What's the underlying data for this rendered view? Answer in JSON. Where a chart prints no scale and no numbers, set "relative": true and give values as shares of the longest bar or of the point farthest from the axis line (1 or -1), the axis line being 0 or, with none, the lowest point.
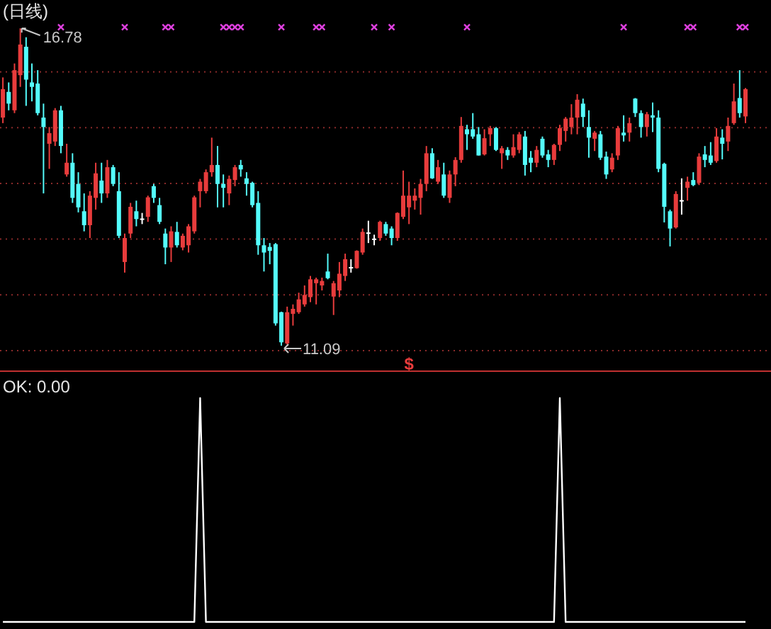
{
  "chart_data": [
    {
      "type": "candlestick",
      "title": "(日线)",
      "categories": [
        null,
        null,
        null,
        null,
        null,
        null,
        null,
        null,
        null,
        null,
        null,
        null,
        null,
        null,
        null,
        null,
        null,
        null,
        null,
        null,
        null,
        null,
        null,
        null,
        null,
        null,
        null,
        null,
        null,
        null,
        null,
        null,
        null,
        null,
        null,
        null,
        null,
        null,
        null,
        null,
        null,
        null,
        null,
        null,
        null,
        null,
        null,
        null,
        null,
        null,
        null,
        null,
        null,
        null,
        null,
        null,
        null,
        null,
        null,
        null,
        null,
        null,
        null,
        null,
        null,
        null,
        null,
        null,
        null,
        null,
        null,
        null,
        null,
        null,
        null,
        null,
        null,
        null,
        null,
        null,
        null,
        null,
        null,
        null,
        null,
        null,
        null,
        null,
        null,
        null,
        null,
        null,
        null,
        null,
        null,
        null,
        null,
        null,
        null,
        null,
        null,
        null,
        null,
        null,
        null,
        null,
        null,
        null,
        null,
        null,
        null,
        null,
        null,
        null,
        null,
        null,
        null,
        null,
        null,
        null,
        null,
        null,
        null,
        null,
        null,
        null,
        null,
        null,
        null
      ],
      "ohlc": [
        [
          15.18,
          15.9,
          15.08,
          15.69
        ],
        [
          15.64,
          15.81,
          15.31,
          15.43
        ],
        [
          15.31,
          16.15,
          15.26,
          16.03
        ],
        [
          15.94,
          16.78,
          15.73,
          16.49
        ],
        [
          16.45,
          16.62,
          15.39,
          15.86
        ],
        [
          15.81,
          16.15,
          15.47,
          15.73
        ],
        [
          15.79,
          16.03,
          15.22,
          15.26
        ],
        [
          15.18,
          15.43,
          13.82,
          15.01
        ],
        [
          14.71,
          15.01,
          14.26,
          14.9
        ],
        [
          14.75,
          15.35,
          14.67,
          15.31
        ],
        [
          15.31,
          15.39,
          14.54,
          14.67
        ],
        [
          14.16,
          14.71,
          14.12,
          14.37
        ],
        [
          14.37,
          14.54,
          13.65,
          13.74
        ],
        [
          13.99,
          14.2,
          13.48,
          13.57
        ],
        [
          13.5,
          13.82,
          13.14,
          13.25
        ],
        [
          13.25,
          13.86,
          13.02,
          13.78
        ],
        [
          13.74,
          14.37,
          13.53,
          14.18
        ],
        [
          14.05,
          14.37,
          13.65,
          13.82
        ],
        [
          13.82,
          14.42,
          13.74,
          14.29
        ],
        [
          14.29,
          14.33,
          13.95,
          13.99
        ],
        [
          13.86,
          14.2,
          13.02,
          13.06
        ],
        [
          12.59,
          13.1,
          12.4,
          13.02
        ],
        [
          13.1,
          13.65,
          13.02,
          13.58
        ],
        [
          13.5,
          13.69,
          13.23,
          13.36
        ],
        [
          13.37,
          13.47,
          13.27,
          13.37
        ],
        [
          13.4,
          13.78,
          13.31,
          13.75
        ],
        [
          13.95,
          13.99,
          13.65,
          13.74
        ],
        [
          13.61,
          13.74,
          13.27,
          13.31
        ],
        [
          13.1,
          13.19,
          12.55,
          12.85
        ],
        [
          12.85,
          13.23,
          12.59,
          13.14
        ],
        [
          13.13,
          13.31,
          12.85,
          12.89
        ],
        [
          12.85,
          13.1,
          12.8,
          13.06
        ],
        [
          12.89,
          13.27,
          12.76,
          13.23
        ],
        [
          13.14,
          13.78,
          13.1,
          13.75
        ],
        [
          13.86,
          14.08,
          13.57,
          14.03
        ],
        [
          13.86,
          14.25,
          13.82,
          14.2
        ],
        [
          14.2,
          14.82,
          14.12,
          14.33
        ],
        [
          14.33,
          14.67,
          13.57,
          13.99
        ],
        [
          13.99,
          14.16,
          13.57,
          13.92
        ],
        [
          13.82,
          14.14,
          13.61,
          14.08
        ],
        [
          14.06,
          14.33,
          13.95,
          14.29
        ],
        [
          14.33,
          14.42,
          14.12,
          14.25
        ],
        [
          14.09,
          14.2,
          13.78,
          13.99
        ],
        [
          14.01,
          14.03,
          13.57,
          13.61
        ],
        [
          13.65,
          13.86,
          12.72,
          12.89
        ],
        [
          12.89,
          13.02,
          12.42,
          12.76
        ],
        [
          12.86,
          12.93,
          12.55,
          12.79
        ],
        [
          12.91,
          12.93,
          11.45,
          11.49
        ],
        [
          11.69,
          11.7,
          11.09,
          11.15
        ],
        [
          11.13,
          11.79,
          11.11,
          11.69
        ],
        [
          11.66,
          11.83,
          11.45,
          11.75
        ],
        [
          11.69,
          12.04,
          11.66,
          11.92
        ],
        [
          11.83,
          12.17,
          11.79,
          12.0
        ],
        [
          11.96,
          12.34,
          11.87,
          12.28
        ],
        [
          12.21,
          12.31,
          11.83,
          12.28
        ],
        [
          12.17,
          12.31,
          12.08,
          12.25
        ],
        [
          12.42,
          12.74,
          12.28,
          12.3
        ],
        [
          11.97,
          12.25,
          11.64,
          12.21
        ],
        [
          12.08,
          12.59,
          11.96,
          12.38
        ],
        [
          12.34,
          12.74,
          12.25,
          12.64
        ],
        [
          12.5,
          12.64,
          12.4,
          12.5
        ],
        [
          12.48,
          12.8,
          12.47,
          12.79
        ],
        [
          12.76,
          13.19,
          12.72,
          13.13
        ],
        [
          13.12,
          13.33,
          12.93,
          13.12
        ],
        [
          13.01,
          13.08,
          12.89,
          13.01
        ],
        [
          13.02,
          13.33,
          12.97,
          13.31
        ],
        [
          13.27,
          13.31,
          13.06,
          13.1
        ],
        [
          13.19,
          13.23,
          12.89,
          13.02
        ],
        [
          13.02,
          13.48,
          12.97,
          13.47
        ],
        [
          13.4,
          14.23,
          13.36,
          13.78
        ],
        [
          13.57,
          14.03,
          13.27,
          13.78
        ],
        [
          13.69,
          13.91,
          13.53,
          13.78
        ],
        [
          13.74,
          14.08,
          13.44,
          13.99
        ],
        [
          13.99,
          14.67,
          13.86,
          14.54
        ],
        [
          14.54,
          14.63,
          14.08,
          14.09
        ],
        [
          14.03,
          14.42,
          13.99,
          14.29
        ],
        [
          14.16,
          14.37,
          13.74,
          13.78
        ],
        [
          13.74,
          14.23,
          13.65,
          14.16
        ],
        [
          14.16,
          14.47,
          13.95,
          14.42
        ],
        [
          14.42,
          15.19,
          14.37,
          15.03
        ],
        [
          14.97,
          15.05,
          14.6,
          14.88
        ],
        [
          14.97,
          15.26,
          14.8,
          14.84
        ],
        [
          14.88,
          15.01,
          14.5,
          14.5
        ],
        [
          14.52,
          14.97,
          14.5,
          14.81
        ],
        [
          14.88,
          15.03,
          14.67,
          14.99
        ],
        [
          14.99,
          15.01,
          14.58,
          14.6
        ],
        [
          14.54,
          14.67,
          14.26,
          14.63
        ],
        [
          14.6,
          14.65,
          14.42,
          14.5
        ],
        [
          14.5,
          14.88,
          14.46,
          14.65
        ],
        [
          14.6,
          14.92,
          14.54,
          14.88
        ],
        [
          14.84,
          14.94,
          14.14,
          14.33
        ],
        [
          14.46,
          14.58,
          14.2,
          14.37
        ],
        [
          14.37,
          14.67,
          14.29,
          14.6
        ],
        [
          14.8,
          14.84,
          14.46,
          14.5
        ],
        [
          14.52,
          14.6,
          14.29,
          14.42
        ],
        [
          14.42,
          14.71,
          14.33,
          14.69
        ],
        [
          14.69,
          15.05,
          14.58,
          14.99
        ],
        [
          14.94,
          15.19,
          14.75,
          15.16
        ],
        [
          15.01,
          15.42,
          14.88,
          15.18
        ],
        [
          15.18,
          15.6,
          14.88,
          15.5
        ],
        [
          15.43,
          15.52,
          15.01,
          15.19
        ],
        [
          15.01,
          15.31,
          14.46,
          14.82
        ],
        [
          14.8,
          14.94,
          14.58,
          14.91
        ],
        [
          14.88,
          14.94,
          14.42,
          14.46
        ],
        [
          14.48,
          14.57,
          14.08,
          14.16
        ],
        [
          14.25,
          14.54,
          14.2,
          14.46
        ],
        [
          14.5,
          15.03,
          14.42,
          14.99
        ],
        [
          14.91,
          15.22,
          14.75,
          14.86
        ],
        [
          14.91,
          15.18,
          14.75,
          15.08
        ],
        [
          15.52,
          15.53,
          15.19,
          15.26
        ],
        [
          15.26,
          15.31,
          14.82,
          15.01
        ],
        [
          15.01,
          15.28,
          14.84,
          15.24
        ],
        [
          15.22,
          15.45,
          14.92,
          15.18
        ],
        [
          15.18,
          15.31,
          14.2,
          14.26
        ],
        [
          14.35,
          14.37,
          13.3,
          13.58
        ],
        [
          13.5,
          13.53,
          12.87,
          13.19
        ],
        [
          13.21,
          13.86,
          13.19,
          13.81
        ],
        [
          13.7,
          14.09,
          13.44,
          13.7
        ],
        [
          13.92,
          14.12,
          13.69,
          14.03
        ],
        [
          14.06,
          14.2,
          13.95,
          13.97
        ],
        [
          14.01,
          14.54,
          13.97,
          14.48
        ],
        [
          14.52,
          14.67,
          14.29,
          14.42
        ],
        [
          14.5,
          14.74,
          14.33,
          14.37
        ],
        [
          14.4,
          14.99,
          14.37,
          14.84
        ],
        [
          14.82,
          14.97,
          14.43,
          14.71
        ],
        [
          14.75,
          15.18,
          14.58,
          15.03
        ],
        [
          15.08,
          15.79,
          15.05,
          15.47
        ],
        [
          15.53,
          16.03,
          15.18,
          15.26
        ],
        [
          15.2,
          15.71,
          15.08,
          15.69
        ]
      ],
      "colors": [
        "#e83c3c",
        "#54fcfc",
        "#e83c3c",
        "#e83c3c",
        "#54fcfc",
        "#54fcfc",
        "#54fcfc",
        "#54fcfc",
        "#e83c3c",
        "#e83c3c",
        "#54fcfc",
        "#e83c3c",
        "#54fcfc",
        "#54fcfc",
        "#54fcfc",
        "#e83c3c",
        "#e83c3c",
        "#54fcfc",
        "#e83c3c",
        "#54fcfc",
        "#54fcfc",
        "#e83c3c",
        "#e83c3c",
        "#54fcfc",
        "#ffffff",
        "#e83c3c",
        "#54fcfc",
        "#54fcfc",
        "#54fcfc",
        "#e83c3c",
        "#54fcfc",
        "#e83c3c",
        "#e83c3c",
        "#e83c3c",
        "#e83c3c",
        "#e83c3c",
        "#e83c3c",
        "#54fcfc",
        "#54fcfc",
        "#e83c3c",
        "#e83c3c",
        "#54fcfc",
        "#54fcfc",
        "#54fcfc",
        "#54fcfc",
        "#54fcfc",
        "#54fcfc",
        "#54fcfc",
        "#54fcfc",
        "#e83c3c",
        "#e83c3c",
        "#e83c3c",
        "#e83c3c",
        "#e83c3c",
        "#e83c3c",
        "#e83c3c",
        "#54fcfc",
        "#e83c3c",
        "#e83c3c",
        "#e83c3c",
        "#ffffff",
        "#e83c3c",
        "#e83c3c",
        "#ffffff",
        "#ffffff",
        "#e83c3c",
        "#54fcfc",
        "#54fcfc",
        "#e83c3c",
        "#e83c3c",
        "#e83c3c",
        "#e83c3c",
        "#e83c3c",
        "#e83c3c",
        "#54fcfc",
        "#e83c3c",
        "#54fcfc",
        "#e83c3c",
        "#e83c3c",
        "#e83c3c",
        "#54fcfc",
        "#54fcfc",
        "#54fcfc",
        "#e83c3c",
        "#e83c3c",
        "#54fcfc",
        "#e83c3c",
        "#54fcfc",
        "#e83c3c",
        "#e83c3c",
        "#54fcfc",
        "#54fcfc",
        "#e83c3c",
        "#54fcfc",
        "#54fcfc",
        "#e83c3c",
        "#e83c3c",
        "#e83c3c",
        "#e83c3c",
        "#e83c3c",
        "#54fcfc",
        "#54fcfc",
        "#e83c3c",
        "#54fcfc",
        "#54fcfc",
        "#e83c3c",
        "#e83c3c",
        "#54fcfc",
        "#e83c3c",
        "#54fcfc",
        "#54fcfc",
        "#e83c3c",
        "#54fcfc",
        "#54fcfc",
        "#54fcfc",
        "#54fcfc",
        "#e83c3c",
        "#ffffff",
        "#e83c3c",
        "#54fcfc",
        "#e83c3c",
        "#54fcfc",
        "#54fcfc",
        "#e83c3c",
        "#54fcfc",
        "#e83c3c",
        "#e83c3c",
        "#54fcfc",
        "#e83c3c"
      ],
      "series": [
        {
          "type": "scatter",
          "color": "#e040e0",
          "marker": "cross",
          "values": [
            null,
            null,
            null,
            null,
            null,
            null,
            null,
            null,
            null,
            null,
            16.8,
            null,
            null,
            null,
            null,
            null,
            null,
            null,
            null,
            null,
            null,
            16.8,
            null,
            null,
            null,
            null,
            null,
            null,
            16.8,
            16.8,
            null,
            null,
            null,
            null,
            null,
            null,
            null,
            null,
            16.8,
            16.8,
            16.8,
            16.8,
            null,
            null,
            null,
            null,
            null,
            null,
            16.8,
            null,
            null,
            null,
            null,
            null,
            16.8,
            16.8,
            null,
            null,
            null,
            null,
            null,
            null,
            null,
            null,
            16.8,
            null,
            null,
            16.8,
            null,
            null,
            null,
            null,
            null,
            null,
            null,
            null,
            null,
            null,
            null,
            null,
            16.8,
            null,
            null,
            null,
            null,
            null,
            null,
            null,
            null,
            null,
            null,
            null,
            null,
            null,
            null,
            null,
            null,
            null,
            null,
            null,
            null,
            null,
            null,
            null,
            null,
            null,
            null,
            16.8,
            null,
            null,
            null,
            null,
            null,
            null,
            null,
            null,
            null,
            null,
            16.8,
            16.8,
            null,
            null,
            null,
            null,
            null,
            null,
            null,
            16.8,
            16.8
          ]
        }
      ],
      "yticks": [
        {
          "value": 11,
          "label": null
        },
        {
          "value": 12,
          "label": null
        },
        {
          "value": 13,
          "label": null
        },
        {
          "value": 14,
          "label": null
        },
        {
          "value": 15,
          "label": null
        },
        {
          "value": 16,
          "label": null
        }
      ],
      "grid": "y",
      "annotations": [
        "16.78",
        "11.09",
        "$"
      ]
    },
    {
      "type": "line",
      "title": "OK: 0.00",
      "relative": true,
      "categories": [
        null,
        null,
        null,
        null,
        null,
        null,
        null,
        null,
        null,
        null,
        null,
        null,
        null,
        null,
        null,
        null,
        null,
        null,
        null,
        null,
        null,
        null,
        null,
        null,
        null,
        null,
        null,
        null,
        null,
        null,
        null,
        null,
        null,
        null,
        null,
        null,
        null,
        null,
        null,
        null,
        null,
        null,
        null,
        null,
        null,
        null,
        null,
        null,
        null,
        null,
        null,
        null,
        null,
        null,
        null,
        null,
        null,
        null,
        null,
        null,
        null,
        null,
        null,
        null,
        null,
        null,
        null,
        null,
        null,
        null,
        null,
        null,
        null,
        null,
        null,
        null,
        null,
        null,
        null,
        null,
        null,
        null,
        null,
        null,
        null,
        null,
        null,
        null,
        null,
        null,
        null,
        null,
        null,
        null,
        null,
        null,
        null,
        null,
        null,
        null,
        null,
        null,
        null,
        null,
        null,
        null,
        null,
        null,
        null,
        null,
        null,
        null,
        null,
        null,
        null,
        null,
        null,
        null,
        null,
        null,
        null,
        null,
        null,
        null,
        null,
        null,
        null,
        null,
        null
      ],
      "series": [
        {
          "color": "#ffffff",
          "values": [
            0,
            0,
            0,
            0,
            0,
            0,
            0,
            0,
            0,
            0,
            0,
            0,
            0,
            0,
            0,
            0,
            0,
            0,
            0,
            0,
            0,
            0,
            0,
            0,
            0,
            0,
            0,
            0,
            0,
            0,
            0,
            0,
            0,
            0,
            1,
            0,
            0,
            0,
            0,
            0,
            0,
            0,
            0,
            0,
            0,
            0,
            0,
            0,
            0,
            0,
            0,
            0,
            0,
            0,
            0,
            0,
            0,
            0,
            0,
            0,
            0,
            0,
            0,
            0,
            0,
            0,
            0,
            0,
            0,
            0,
            0,
            0,
            0,
            0,
            0,
            0,
            0,
            0,
            0,
            0,
            0,
            0,
            0,
            0,
            0,
            0,
            0,
            0,
            0,
            0,
            0,
            0,
            0,
            0,
            0,
            0,
            1,
            0,
            0,
            0,
            0,
            0,
            0,
            0,
            0,
            0,
            0,
            0,
            0,
            0,
            0,
            0,
            0,
            0,
            0,
            0,
            0,
            0,
            0,
            0,
            0,
            0,
            0,
            0,
            0,
            0,
            0,
            0,
            0
          ]
        }
      ]
    }
  ]
}
